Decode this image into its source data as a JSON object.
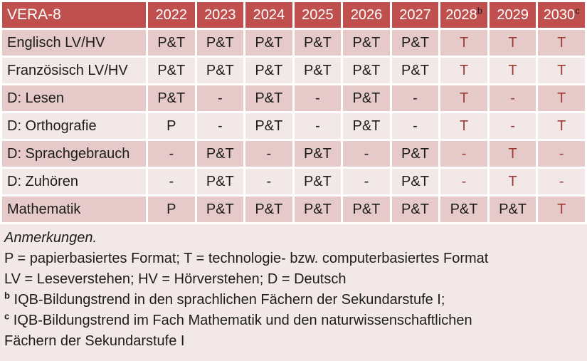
{
  "table": {
    "title": "VERA-8",
    "years": [
      {
        "label": "2022",
        "sup": ""
      },
      {
        "label": "2023",
        "sup": ""
      },
      {
        "label": "2024",
        "sup": ""
      },
      {
        "label": "2025",
        "sup": ""
      },
      {
        "label": "2026",
        "sup": ""
      },
      {
        "label": "2027",
        "sup": ""
      },
      {
        "label": "2028",
        "sup": "b"
      },
      {
        "label": "2029",
        "sup": ""
      },
      {
        "label": "2030",
        "sup": "c"
      }
    ],
    "rows": [
      {
        "label": "Englisch LV/HV",
        "cells": [
          {
            "v": "P&T"
          },
          {
            "v": "P&T"
          },
          {
            "v": "P&T"
          },
          {
            "v": "P&T"
          },
          {
            "v": "P&T"
          },
          {
            "v": "P&T"
          },
          {
            "v": "T",
            "red": true
          },
          {
            "v": "T",
            "red": true
          },
          {
            "v": "T",
            "red": true
          }
        ]
      },
      {
        "label": "Französisch LV/HV",
        "cells": [
          {
            "v": "P&T"
          },
          {
            "v": "P&T"
          },
          {
            "v": "P&T"
          },
          {
            "v": "P&T"
          },
          {
            "v": "P&T"
          },
          {
            "v": "P&T"
          },
          {
            "v": "T",
            "red": true
          },
          {
            "v": "T",
            "red": true
          },
          {
            "v": "T",
            "red": true
          }
        ]
      },
      {
        "label": "D: Lesen",
        "cells": [
          {
            "v": "P&T"
          },
          {
            "v": "-"
          },
          {
            "v": "P&T"
          },
          {
            "v": "-"
          },
          {
            "v": "P&T"
          },
          {
            "v": "-"
          },
          {
            "v": "T",
            "red": true
          },
          {
            "v": "-",
            "red": true
          },
          {
            "v": "T",
            "red": true
          }
        ]
      },
      {
        "label": "D: Orthografie",
        "cells": [
          {
            "v": "P"
          },
          {
            "v": "-"
          },
          {
            "v": "P&T"
          },
          {
            "v": "-"
          },
          {
            "v": "P&T"
          },
          {
            "v": "-"
          },
          {
            "v": "T",
            "red": true
          },
          {
            "v": "-",
            "red": true
          },
          {
            "v": "T",
            "red": true
          }
        ]
      },
      {
        "label": "D: Sprachgebrauch",
        "cells": [
          {
            "v": "-"
          },
          {
            "v": "P&T"
          },
          {
            "v": "-"
          },
          {
            "v": "P&T"
          },
          {
            "v": "-"
          },
          {
            "v": "P&T"
          },
          {
            "v": "-",
            "red": true
          },
          {
            "v": "T",
            "red": true
          },
          {
            "v": "-",
            "red": true
          }
        ]
      },
      {
        "label": "D: Zuhören",
        "cells": [
          {
            "v": "-"
          },
          {
            "v": "P&T"
          },
          {
            "v": "-"
          },
          {
            "v": "P&T"
          },
          {
            "v": "-"
          },
          {
            "v": "P&T"
          },
          {
            "v": "-",
            "red": true
          },
          {
            "v": "T",
            "red": true
          },
          {
            "v": "-",
            "red": true
          }
        ]
      },
      {
        "label": "Mathematik",
        "cells": [
          {
            "v": "P"
          },
          {
            "v": "P&T"
          },
          {
            "v": "P&T"
          },
          {
            "v": "P&T"
          },
          {
            "v": "P&T"
          },
          {
            "v": "P&T"
          },
          {
            "v": "P&T"
          },
          {
            "v": "P&T"
          },
          {
            "v": "T",
            "red": true
          }
        ]
      }
    ]
  },
  "notes": {
    "heading": "Anmerkungen.",
    "formats": "P = papierbasiertes Format; T = technologie- bzw. computerbasiertes Format",
    "abbreviations": "LV = Leseverstehen; HV = Hörverstehen; D = Deutsch",
    "note_b": {
      "sup": "b",
      "text": "IQB-Bildungstrend in den sprachlichen Fächern der Sekundarstufe I;"
    },
    "note_c": {
      "sup": "c",
      "text_line1": "IQB-Bildungstrend im Fach Mathematik und den naturwissenschaftlichen",
      "text_line2": "Fächern der Sekundarstufe I"
    }
  },
  "colors": {
    "header_bg": "#c0504d",
    "header_text": "#ffffff",
    "band_dark": "#e5cac9",
    "band_light": "#f2e8e7",
    "highlight_text": "#9e3b36",
    "body_text": "#1c1c1c",
    "grid_gap": "#ffffff"
  }
}
